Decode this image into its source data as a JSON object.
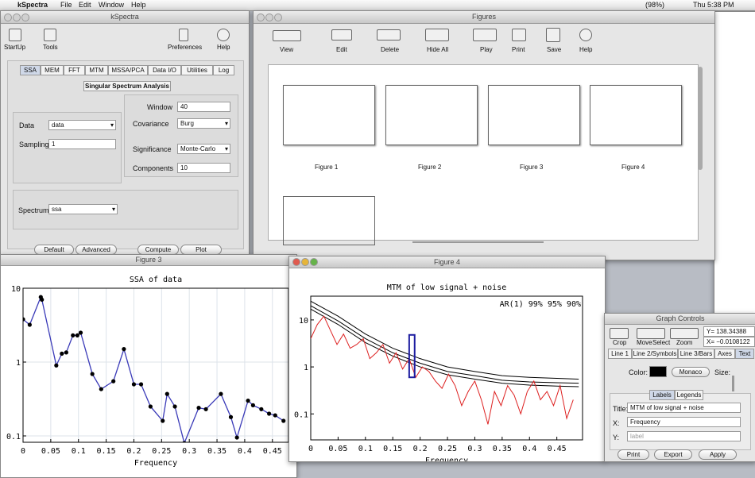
{
  "menu_bar": {
    "app": "kSpectra",
    "items": [
      "File",
      "Edit",
      "Window",
      "Help"
    ],
    "battery": "(98%)",
    "clock": "Thu 5:38 PM"
  },
  "main_window": {
    "title": "kSpectra",
    "toolbar": [
      "StartUp",
      "Tools",
      "Preferences",
      "Help"
    ],
    "tabs": [
      "SSA",
      "MEM",
      "FFT",
      "MTM",
      "MSSA/PCA",
      "Data I/O",
      "Utilities",
      "Log"
    ],
    "section": "Singular Spectrum Analysis",
    "data_label": "Data",
    "data_value": "data",
    "sampling_label": "Sampling",
    "sampling_value": "1",
    "window_label": "Window",
    "window_value": "40",
    "covariance_label": "Covariance",
    "covariance_value": "Burg",
    "significance_label": "Significance",
    "significance_value": "Monte-Carlo",
    "components_label": "Components",
    "components_value": "10",
    "spectrum_label": "Spectrum",
    "spectrum_value": "ssa",
    "buttons": [
      "Default",
      "Advanced",
      "Compute",
      "Plot"
    ]
  },
  "figures_window": {
    "title": "Figures",
    "toolbar": [
      "View",
      "Edit",
      "Delete",
      "Hide All",
      "Play",
      "Print",
      "Save",
      "Help"
    ],
    "thumbnails": [
      "Figure 1",
      "Figure 2",
      "Figure 3",
      "Figure 4"
    ]
  },
  "figure3_window": {
    "title": "Figure 3",
    "plot": {
      "type": "line",
      "title": "SSA of data",
      "x_label": "Frequency",
      "log_y": true,
      "grid": true,
      "color": "#3a3ab8",
      "marker_color": "#000000",
      "error_color": "#cc2020",
      "x": [
        0,
        0.012,
        0.032,
        0.034,
        0.06,
        0.07,
        0.078,
        0.09,
        0.098,
        0.104,
        0.125,
        0.141,
        0.163,
        0.182,
        0.2,
        0.213,
        0.23,
        0.252,
        0.26,
        0.274,
        0.291,
        0.317,
        0.33,
        0.357,
        0.375,
        0.386,
        0.406,
        0.415,
        0.43,
        0.444,
        0.455,
        0.47
      ],
      "values": [
        3.8,
        3.2,
        7.6,
        7,
        0.9,
        1.3,
        1.35,
        2.3,
        2.3,
        2.5,
        0.69,
        0.43,
        0.55,
        1.5,
        0.5,
        0.5,
        0.25,
        0.16,
        0.37,
        0.25,
        0.08,
        0.24,
        0.23,
        0.37,
        0.18,
        0.095,
        0.3,
        0.26,
        0.23,
        0.2,
        0.19,
        0.16
      ],
      "xlim": [
        0,
        0.479
      ],
      "xticks": [
        0,
        0.05,
        0.1,
        0.15,
        0.2,
        0.25,
        0.3,
        0.35,
        0.4,
        0.45
      ],
      "ylim": [
        0.082,
        10
      ],
      "yticks": [
        0.1,
        1,
        10
      ]
    }
  },
  "figure4_window": {
    "title": "Figure 4",
    "plot": {
      "type": "line",
      "title": "MTM of low signal + noise",
      "x_label": "Frequency",
      "annotation": "AR(1) 99% 95% 90%",
      "log_y": true,
      "grid": false,
      "x": [
        0,
        0.012,
        0.024,
        0.036,
        0.048,
        0.06,
        0.072,
        0.084,
        0.096,
        0.108,
        0.12,
        0.132,
        0.144,
        0.156,
        0.168,
        0.18,
        0.192,
        0.204,
        0.216,
        0.228,
        0.24,
        0.252,
        0.264,
        0.276,
        0.288,
        0.3,
        0.312,
        0.324,
        0.336,
        0.348,
        0.36,
        0.372,
        0.384,
        0.396,
        0.408,
        0.42,
        0.432,
        0.444,
        0.456,
        0.468,
        0.48
      ],
      "series": [
        {
          "color": "#dd2020",
          "values": [
            4,
            8,
            12,
            6,
            3,
            5,
            2.5,
            3,
            4,
            1.5,
            2,
            3,
            1.2,
            2,
            0.9,
            1.5,
            0.6,
            1,
            0.8,
            0.5,
            0.35,
            0.7,
            0.4,
            0.15,
            0.3,
            0.5,
            0.2,
            0.06,
            0.3,
            0.15,
            0.4,
            0.25,
            0.1,
            0.3,
            0.5,
            0.2,
            0.3,
            0.15,
            0.4,
            0.08,
            0.2
          ]
        }
      ],
      "bounds": {
        "color": "#000000",
        "x": [
          0,
          0.05,
          0.1,
          0.15,
          0.2,
          0.25,
          0.3,
          0.35,
          0.4,
          0.45,
          0.49
        ],
        "series": [
          {
            "values": [
              25,
              12,
              5,
              2.5,
              1.5,
              1.0,
              0.8,
              0.65,
              0.6,
              0.57,
              0.55
            ]
          },
          {
            "values": [
              20,
              9.5,
              4,
              2,
              1.2,
              0.8,
              0.65,
              0.52,
              0.48,
              0.46,
              0.45
            ]
          },
          {
            "values": [
              17,
              8,
              3.3,
              1.7,
              1.0,
              0.68,
              0.55,
              0.45,
              0.41,
              0.39,
              0.38
            ]
          }
        ]
      },
      "marker": {
        "x": [
          0.18,
          0.19
        ],
        "y": [
          0.6,
          4.8
        ],
        "color": "#1c1ca0"
      },
      "xlim": [
        0,
        0.497
      ],
      "xticks": [
        0,
        0.05,
        0.1,
        0.15,
        0.2,
        0.25,
        0.3,
        0.35,
        0.4,
        0.45
      ],
      "ylim": [
        0.028,
        32
      ],
      "yticks": [
        0.1,
        1,
        10
      ]
    }
  },
  "graph_controls": {
    "title": "Graph Controls",
    "tools": [
      "Crop",
      "Move",
      "Select",
      "Zoom"
    ],
    "y_readout": "Y= 138.34388",
    "x_readout": "X= −0.0108122",
    "tabs": [
      "Line 1",
      "Line 2/Symbols",
      "Line 3/Bars",
      "Axes",
      "Text"
    ],
    "color_label": "Color:",
    "font": "Monaco",
    "size_label": "Size:",
    "subtabs": [
      "Labels",
      "Legends"
    ],
    "title_label": "Title:",
    "title_value": "MTM of low signal + noise",
    "x_label": "X:",
    "x_value": "Frequency",
    "y_label": "Y:",
    "y_placeholder": "label",
    "buttons": [
      "Print",
      "Export",
      "Apply"
    ]
  }
}
